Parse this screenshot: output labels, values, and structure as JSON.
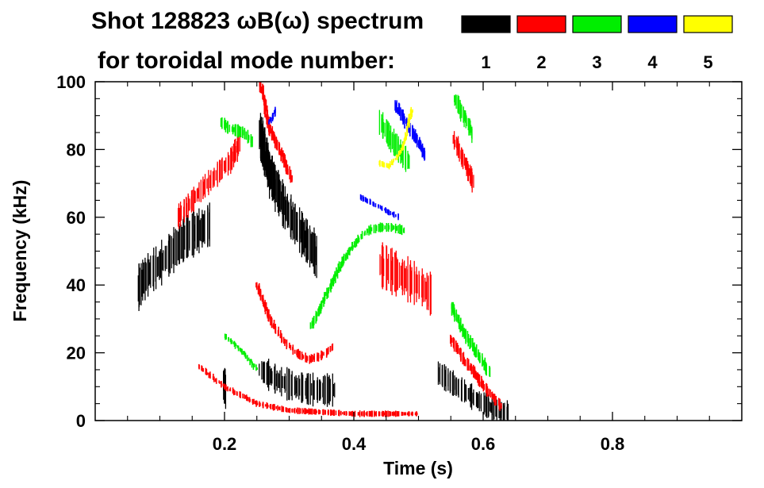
{
  "chart_data": {
    "type": "heatmap",
    "title_line1": "Shot 128823 ωB(ω) spectrum",
    "title_line2": "for toroidal mode number:",
    "xlabel": "Time (s)",
    "ylabel": "Frequency (kHz)",
    "xlim": [
      0.0,
      1.0
    ],
    "ylim": [
      0,
      100
    ],
    "xticks": [
      0.2,
      0.4,
      0.6,
      0.8
    ],
    "xtick_labels": [
      "0.2",
      "0.4",
      "0.6",
      "0.8"
    ],
    "yticks": [
      0,
      20,
      40,
      60,
      80,
      100
    ],
    "ytick_labels": [
      "0",
      "20",
      "40",
      "60",
      "80",
      "100"
    ],
    "grid": false,
    "legend_placement": "top-right",
    "modes": [
      {
        "label": "1",
        "color": "#000000"
      },
      {
        "label": "2",
        "color": "#ff0000"
      },
      {
        "label": "3",
        "color": "#00ee00"
      },
      {
        "label": "4",
        "color": "#0000ff"
      },
      {
        "label": "5",
        "color": "#ffff00"
      }
    ],
    "features": [
      {
        "mode": 1,
        "points": [
          [
            0.066,
            39
          ],
          [
            0.08,
            43
          ],
          [
            0.1,
            46
          ],
          [
            0.12,
            50
          ],
          [
            0.14,
            54
          ],
          [
            0.16,
            56
          ],
          [
            0.18,
            58
          ]
        ],
        "spread": 7
      },
      {
        "mode": 1,
        "points": [
          [
            0.2,
            14
          ],
          [
            0.2,
            6
          ]
        ],
        "spread": 3
      },
      {
        "mode": 1,
        "points": [
          [
            0.255,
            85
          ],
          [
            0.27,
            73
          ],
          [
            0.29,
            64
          ],
          [
            0.31,
            58
          ],
          [
            0.33,
            52
          ],
          [
            0.345,
            48
          ]
        ],
        "spread": 7
      },
      {
        "mode": 1,
        "points": [
          [
            0.255,
            15
          ],
          [
            0.28,
            12
          ],
          [
            0.31,
            10
          ],
          [
            0.34,
            9
          ],
          [
            0.37,
            9
          ]
        ],
        "spread": 5
      },
      {
        "mode": 1,
        "points": [
          [
            0.53,
            14
          ],
          [
            0.56,
            10
          ],
          [
            0.59,
            6
          ],
          [
            0.62,
            3
          ],
          [
            0.64,
            2
          ]
        ],
        "spread": 4
      },
      {
        "mode": 2,
        "points": [
          [
            0.13,
            60
          ],
          [
            0.15,
            65
          ],
          [
            0.17,
            69
          ],
          [
            0.19,
            73
          ],
          [
            0.21,
            77
          ],
          [
            0.225,
            82
          ]
        ],
        "spread": 4
      },
      {
        "mode": 2,
        "points": [
          [
            0.255,
            100
          ],
          [
            0.27,
            86
          ],
          [
            0.29,
            78
          ],
          [
            0.305,
            71
          ]
        ],
        "spread": 2
      },
      {
        "mode": 2,
        "points": [
          [
            0.25,
            40
          ],
          [
            0.27,
            30
          ],
          [
            0.29,
            24
          ],
          [
            0.31,
            20
          ],
          [
            0.33,
            18
          ],
          [
            0.35,
            19
          ],
          [
            0.37,
            22
          ]
        ],
        "spread": 1.5
      },
      {
        "mode": 2,
        "points": [
          [
            0.44,
            46
          ],
          [
            0.46,
            44
          ],
          [
            0.48,
            42
          ],
          [
            0.5,
            40
          ],
          [
            0.52,
            37
          ]
        ],
        "spread": 7
      },
      {
        "mode": 2,
        "points": [
          [
            0.55,
            24
          ],
          [
            0.57,
            18
          ],
          [
            0.59,
            13
          ],
          [
            0.61,
            8
          ],
          [
            0.63,
            4
          ]
        ],
        "spread": 2
      },
      {
        "mode": 2,
        "points": [
          [
            0.555,
            83
          ],
          [
            0.57,
            77
          ],
          [
            0.585,
            70
          ]
        ],
        "spread": 3
      },
      {
        "mode": 2,
        "points": [
          [
            0.16,
            16
          ],
          [
            0.2,
            10
          ],
          [
            0.25,
            5
          ],
          [
            0.3,
            3
          ],
          [
            0.4,
            2
          ],
          [
            0.5,
            2
          ]
        ],
        "spread": 1
      },
      {
        "mode": 3,
        "points": [
          [
            0.195,
            88
          ],
          [
            0.21,
            86
          ],
          [
            0.23,
            85
          ],
          [
            0.245,
            82
          ]
        ],
        "spread": 2
      },
      {
        "mode": 3,
        "points": [
          [
            0.335,
            28
          ],
          [
            0.36,
            38
          ],
          [
            0.38,
            46
          ],
          [
            0.4,
            52
          ],
          [
            0.42,
            56
          ],
          [
            0.44,
            57
          ],
          [
            0.46,
            57
          ],
          [
            0.48,
            56
          ]
        ],
        "spread": 1.5
      },
      {
        "mode": 3,
        "points": [
          [
            0.44,
            88
          ],
          [
            0.455,
            84
          ],
          [
            0.47,
            80
          ],
          [
            0.485,
            76
          ]
        ],
        "spread": 4
      },
      {
        "mode": 3,
        "points": [
          [
            0.555,
            95
          ],
          [
            0.57,
            90
          ],
          [
            0.585,
            84
          ]
        ],
        "spread": 3
      },
      {
        "mode": 3,
        "points": [
          [
            0.55,
            34
          ],
          [
            0.57,
            26
          ],
          [
            0.59,
            20
          ],
          [
            0.61,
            14
          ]
        ],
        "spread": 2
      },
      {
        "mode": 3,
        "points": [
          [
            0.2,
            25
          ],
          [
            0.23,
            20
          ],
          [
            0.25,
            15
          ]
        ],
        "spread": 1
      },
      {
        "mode": 4,
        "points": [
          [
            0.465,
            93
          ],
          [
            0.48,
            88
          ],
          [
            0.495,
            84
          ],
          [
            0.51,
            78
          ]
        ],
        "spread": 2
      },
      {
        "mode": 4,
        "points": [
          [
            0.41,
            66
          ],
          [
            0.43,
            64
          ],
          [
            0.45,
            62
          ],
          [
            0.47,
            60
          ]
        ],
        "spread": 1
      },
      {
        "mode": 4,
        "points": [
          [
            0.27,
            88
          ],
          [
            0.28,
            92
          ]
        ],
        "spread": 1
      },
      {
        "mode": 5,
        "points": [
          [
            0.44,
            76
          ],
          [
            0.455,
            75
          ],
          [
            0.475,
            80
          ],
          [
            0.49,
            92
          ]
        ],
        "spread": 1
      }
    ]
  }
}
